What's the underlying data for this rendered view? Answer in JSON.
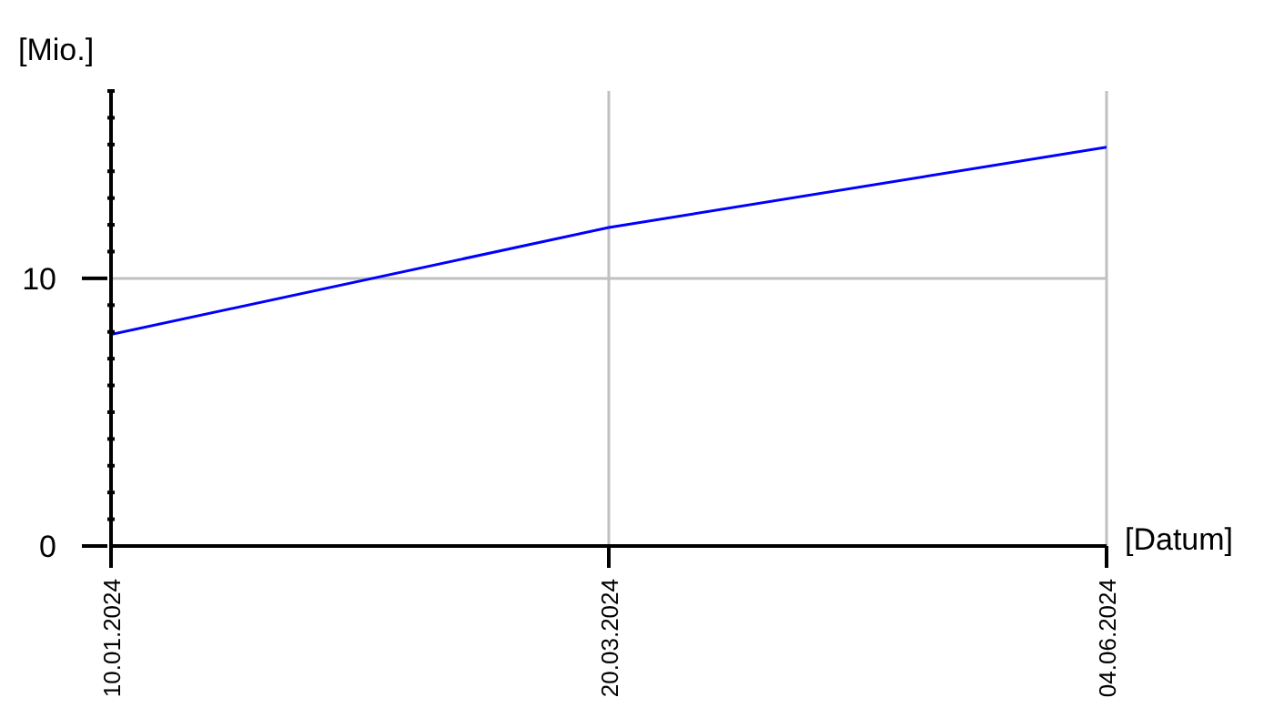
{
  "chart_data": {
    "type": "line",
    "xlabel": "[Datum]",
    "ylabel": "[Mio.]",
    "categories": [
      "10.01.2024",
      "20.03.2024",
      "04.06.2024"
    ],
    "series": [
      {
        "color": "#0000ff",
        "values": [
          7.9,
          11.9,
          14.9
        ]
      }
    ],
    "ylim": [
      0,
      17
    ],
    "yticks": [
      0,
      {
        "value": 1,
        "label": null
      },
      {
        "value": 2,
        "label": null
      },
      {
        "value": 3,
        "label": null
      },
      {
        "value": 4,
        "label": null
      },
      {
        "value": 5,
        "label": null
      },
      {
        "value": 6,
        "label": null
      },
      {
        "value": 7,
        "label": null
      },
      {
        "value": 8,
        "label": null
      },
      {
        "value": 9,
        "label": null
      },
      10,
      {
        "value": 11,
        "label": null
      },
      {
        "value": 12,
        "label": null
      },
      {
        "value": 13,
        "label": null
      },
      {
        "value": 14,
        "label": null
      },
      {
        "value": 15,
        "label": null
      },
      {
        "value": 16,
        "label": null
      },
      {
        "value": 17,
        "label": null
      }
    ],
    "grid": true,
    "legend": false,
    "marker": "none",
    "line_style": "solid"
  }
}
